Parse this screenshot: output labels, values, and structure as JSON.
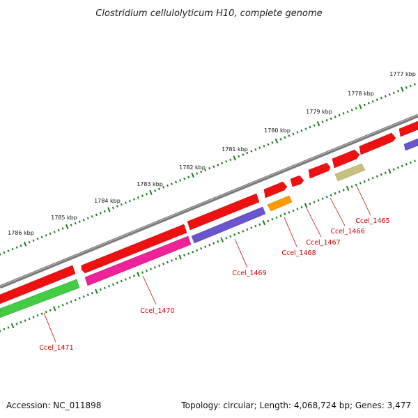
{
  "title": "Clostridium cellulolyticum H10, complete genome",
  "footer": {
    "accession": "Accession: NC_011898",
    "topology": "Topology: circular; Length: 4,068,724 bp; Genes: 3,477"
  },
  "kbp_labels": [
    "1777 kbp",
    "1778 kbp",
    "1779 kbp",
    "1780 kbp",
    "1781 kbp",
    "1782 kbp",
    "1783 kbp",
    "1784 kbp",
    "1785 kbp",
    "1786 kbp"
  ],
  "genes": [
    {
      "id": "Ccel_1465",
      "label": "Ccel_1465",
      "color": "#c8c080"
    },
    {
      "id": "Ccel_1466",
      "label": "Ccel_1466",
      "color": "#ee1111"
    },
    {
      "id": "Ccel_1467",
      "label": "Ccel_1467",
      "color": "#ee1111"
    },
    {
      "id": "Ccel_1468",
      "label": "Ccel_1468",
      "color": "#ff9900"
    },
    {
      "id": "Ccel_1469",
      "label": "Ccel_1469",
      "color": "#6a55cc"
    },
    {
      "id": "Ccel_1470",
      "label": "Ccel_1470",
      "color": "#ee2299"
    },
    {
      "id": "Ccel_1471",
      "label": "Ccel_1471",
      "color": "#44cc44"
    }
  ],
  "colors": {
    "backbone": "#7a7a7a",
    "ticks": "#1a7a1a",
    "label_line": "#cc0000",
    "forward_gene": "#ee1111"
  }
}
